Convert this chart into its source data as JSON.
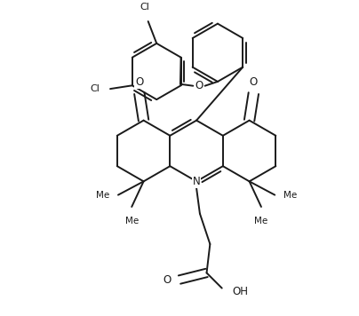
{
  "bg_color": "#ffffff",
  "line_color": "#1a1a1a",
  "line_width": 1.4,
  "figsize": [
    4.04,
    3.56
  ],
  "dpi": 100,
  "xlim": [
    0,
    4.04
  ],
  "ylim": [
    0,
    3.56
  ]
}
